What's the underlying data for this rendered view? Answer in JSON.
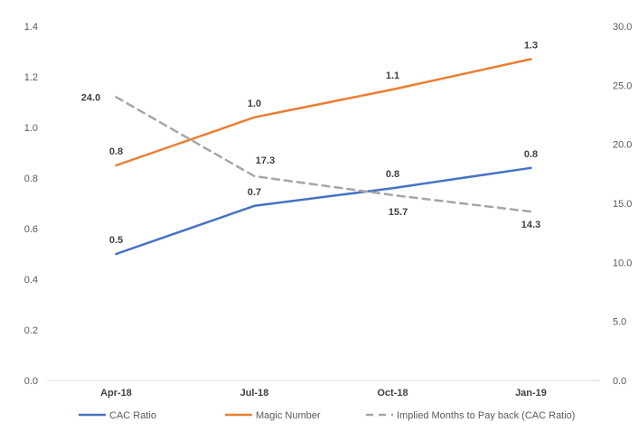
{
  "chart_data": {
    "type": "line",
    "categories": [
      "Apr-18",
      "Jul-18",
      "Oct-18",
      "Jan-19"
    ],
    "y_left": {
      "min": 0,
      "max": 1.4,
      "step": 0.2,
      "ticks": [
        "0.0",
        "0.2",
        "0.4",
        "0.6",
        "0.8",
        "1.0",
        "1.2",
        "1.4"
      ]
    },
    "y_right": {
      "min": 0,
      "max": 30,
      "step": 5,
      "ticks": [
        "0.0",
        "5.0",
        "10.0",
        "15.0",
        "20.0",
        "25.0",
        "30.0"
      ]
    },
    "grid": false,
    "legend_position": "bottom",
    "series": [
      {
        "name": "CAC Ratio",
        "axis": "left",
        "color": "#4472C4",
        "dash": false,
        "values": [
          0.5,
          0.69,
          0.76,
          0.84
        ],
        "labels": [
          "0.5",
          "0.7",
          "0.8",
          "0.8"
        ]
      },
      {
        "name": "Magic Number",
        "axis": "left",
        "color": "#ED7D31",
        "dash": false,
        "values": [
          0.85,
          1.04,
          1.15,
          1.27
        ],
        "labels": [
          "0.8",
          "1.0",
          "1.1",
          "1.3"
        ]
      },
      {
        "name": "Implied Months to Pay back (CAC Ratio)",
        "axis": "right",
        "color": "#A5A5A5",
        "dash": true,
        "values": [
          24.0,
          17.3,
          15.7,
          14.3
        ],
        "labels": [
          "24.0",
          "17.3",
          "15.7",
          "14.3"
        ]
      }
    ]
  }
}
